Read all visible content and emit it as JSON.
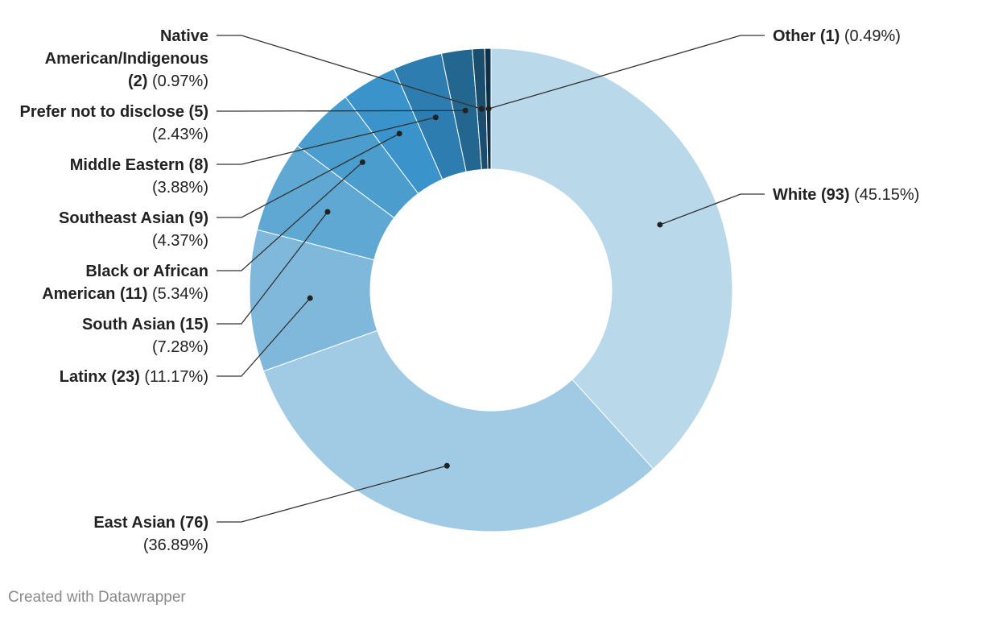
{
  "chart_data": {
    "type": "pie",
    "variant": "donut",
    "slices": [
      {
        "name": "White",
        "count": 93,
        "percent": 45.15,
        "count_text": "(93)",
        "percent_text": "(45.15%)",
        "color": "#b9d8ea"
      },
      {
        "name": "East Asian",
        "count": 76,
        "percent": 36.89,
        "count_text": "(76)",
        "percent_text": "(36.89%)",
        "color": "#a1cbe4"
      },
      {
        "name": "Latinx",
        "count": 23,
        "percent": 11.17,
        "count_text": "(23)",
        "percent_text": "(11.17%)",
        "color": "#7fb8da"
      },
      {
        "name": "South Asian",
        "count": 15,
        "percent": 7.28,
        "count_text": "(15)",
        "percent_text": "(7.28%)",
        "color": "#5ea8d3"
      },
      {
        "name": "Black or African American",
        "count": 11,
        "percent": 5.34,
        "count_text": "(11)",
        "percent_text": "(5.34%)",
        "color": "#4a9dcd"
      },
      {
        "name": "Southeast Asian",
        "count": 9,
        "percent": 4.37,
        "count_text": "(9)",
        "percent_text": "(4.37%)",
        "color": "#3a93cb"
      },
      {
        "name": "Middle Eastern",
        "count": 8,
        "percent": 3.88,
        "count_text": "(8)",
        "percent_text": "(3.88%)",
        "color": "#2e7db1"
      },
      {
        "name": "Prefer not to disclose",
        "count": 5,
        "percent": 2.43,
        "count_text": "(5)",
        "percent_text": "(2.43%)",
        "color": "#236690"
      },
      {
        "name": "Native American/Indigenous",
        "count": 2,
        "percent": 0.97,
        "count_text": "(2)",
        "percent_text": "(0.97%)",
        "color": "#1b4e6e"
      },
      {
        "name": "Other",
        "count": 1,
        "percent": 0.49,
        "count_text": "(1)",
        "percent_text": "(0.49%)",
        "color": "#0e2f45"
      }
    ],
    "grid": false,
    "legend": "none"
  },
  "footer": {
    "credit": "Created with Datawrapper"
  }
}
